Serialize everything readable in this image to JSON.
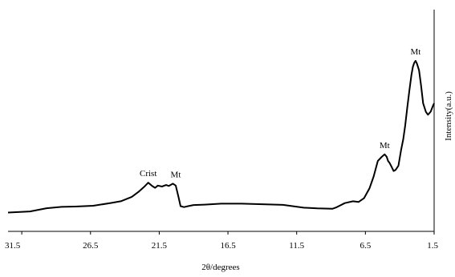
{
  "chart_data": {
    "type": "line",
    "xlabel": "2θ/degrees",
    "ylabel": "Intensity(a.u.)",
    "xlim": [
      32.5,
      1.5
    ],
    "x_reversed": true,
    "ylim": [
      0,
      1
    ],
    "grid": false,
    "legend": "none",
    "x_ticks": [
      31.5,
      26.5,
      21.5,
      16.5,
      11.5,
      6.5,
      1.5
    ],
    "x_tick_labels": [
      "31.5",
      "26.5",
      "21.5",
      "16.5",
      "11.5",
      "6.5",
      "1.5"
    ],
    "series": [
      {
        "color": "#000000",
        "x": [
          32.5,
          30.9,
          29.7,
          28.6,
          27.6,
          26.3,
          25.0,
          24.3,
          23.5,
          23.0,
          22.6,
          22.3,
          22.0,
          21.8,
          21.6,
          21.3,
          21.0,
          20.8,
          20.5,
          20.3,
          20.1,
          19.95,
          19.7,
          19.4,
          19.0,
          18.2,
          17.0,
          15.5,
          14.0,
          12.5,
          11.0,
          10.0,
          8.9,
          8.6,
          8.0,
          7.4,
          7.0,
          6.6,
          6.2,
          5.9,
          5.6,
          5.3,
          5.1,
          4.95,
          4.85,
          4.75,
          4.6,
          4.45,
          4.3,
          4.1,
          3.9,
          3.75,
          3.6,
          3.45,
          3.3,
          3.15,
          3.05,
          2.95,
          2.85,
          2.75,
          2.6,
          2.45,
          2.3,
          2.1,
          1.95,
          1.75,
          1.6,
          1.5
        ],
        "y": [
          0.002,
          0.008,
          0.025,
          0.032,
          0.034,
          0.038,
          0.053,
          0.062,
          0.085,
          0.112,
          0.138,
          0.16,
          0.142,
          0.133,
          0.145,
          0.14,
          0.148,
          0.143,
          0.155,
          0.145,
          0.085,
          0.036,
          0.031,
          0.036,
          0.042,
          0.044,
          0.049,
          0.049,
          0.046,
          0.043,
          0.028,
          0.024,
          0.022,
          0.03,
          0.052,
          0.062,
          0.058,
          0.078,
          0.131,
          0.193,
          0.275,
          0.298,
          0.31,
          0.297,
          0.275,
          0.266,
          0.245,
          0.222,
          0.228,
          0.25,
          0.335,
          0.39,
          0.465,
          0.56,
          0.65,
          0.73,
          0.773,
          0.795,
          0.805,
          0.79,
          0.755,
          0.675,
          0.58,
          0.535,
          0.52,
          0.536,
          0.565,
          0.58
        ]
      }
    ],
    "annotations": [
      {
        "text": "Crist",
        "x": 22.3,
        "y": 0.16
      },
      {
        "text": "Mt",
        "x": 20.3,
        "y": 0.155
      },
      {
        "text": "Mt",
        "x": 5.1,
        "y": 0.31
      },
      {
        "text": "Mt",
        "x": 2.85,
        "y": 0.805
      }
    ]
  }
}
